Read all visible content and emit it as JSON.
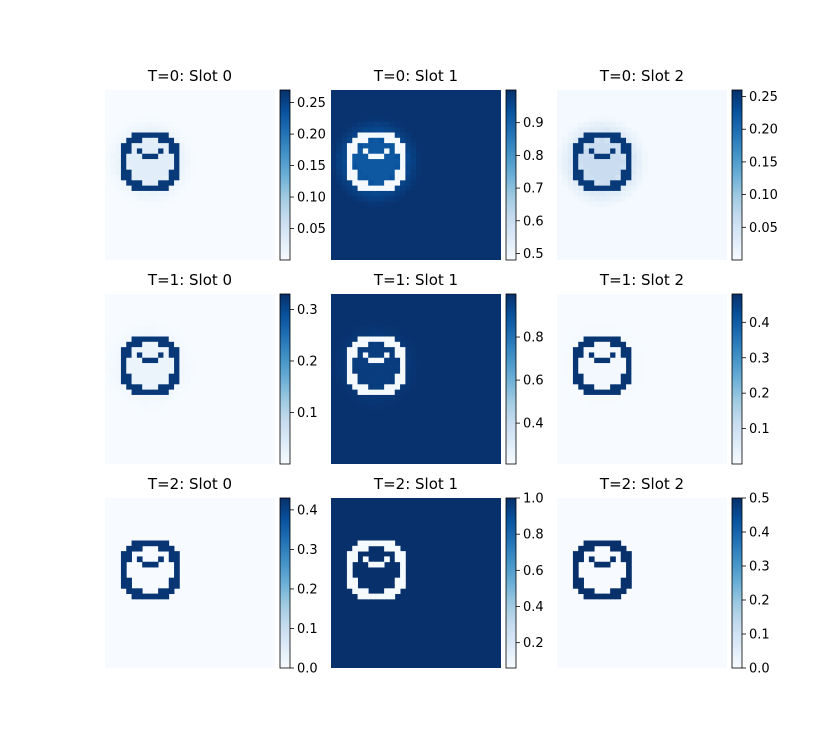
{
  "chart_data": {
    "type": "heatmap",
    "colormap": "Blues",
    "grid": false,
    "colorbar": "right of each panel",
    "ring_shape": "circle outline with inner crescent",
    "panels": [
      {
        "title": "T=0: Slot 0",
        "row": 0,
        "col": 0,
        "background": 0.0,
        "halo": 0.03,
        "ring": 0.26,
        "vmin": 0.0,
        "vmax": 0.27,
        "ticks": [
          0.05,
          0.1,
          0.15,
          0.2,
          0.25
        ],
        "tick_labels": [
          "0.05",
          "0.10",
          "0.15",
          "0.20",
          "0.25"
        ]
      },
      {
        "title": "T=0: Slot 1",
        "row": 0,
        "col": 1,
        "background": 0.995,
        "halo": 0.92,
        "ring": 0.49,
        "vmin": 0.48,
        "vmax": 1.0,
        "ticks": [
          0.5,
          0.6,
          0.7,
          0.8,
          0.9
        ],
        "tick_labels": [
          "0.5",
          "0.6",
          "0.7",
          "0.8",
          "0.9"
        ]
      },
      {
        "title": "T=0: Slot 2",
        "row": 0,
        "col": 2,
        "background": 0.005,
        "halo": 0.06,
        "ring": 0.25,
        "vmin": 0.0,
        "vmax": 0.26,
        "ticks": [
          0.05,
          0.1,
          0.15,
          0.2,
          0.25
        ],
        "tick_labels": [
          "0.05",
          "0.10",
          "0.15",
          "0.20",
          "0.25"
        ]
      },
      {
        "title": "T=1: Slot 0",
        "row": 1,
        "col": 0,
        "background": 0.0,
        "halo": 0.02,
        "ring": 0.32,
        "vmin": 0.0,
        "vmax": 0.33,
        "ticks": [
          0.1,
          0.2,
          0.3
        ],
        "tick_labels": [
          "0.1",
          "0.2",
          "0.3"
        ]
      },
      {
        "title": "T=1: Slot 1",
        "row": 1,
        "col": 1,
        "background": 0.995,
        "halo": 0.96,
        "ring": 0.22,
        "vmin": 0.21,
        "vmax": 1.0,
        "ticks": [
          0.4,
          0.6,
          0.8
        ],
        "tick_labels": [
          "0.4",
          "0.6",
          "0.8"
        ]
      },
      {
        "title": "T=1: Slot 2",
        "row": 1,
        "col": 2,
        "background": 0.0,
        "halo": 0.01,
        "ring": 0.47,
        "vmin": 0.0,
        "vmax": 0.48,
        "ticks": [
          0.1,
          0.2,
          0.3,
          0.4
        ],
        "tick_labels": [
          "0.1",
          "0.2",
          "0.3",
          "0.4"
        ]
      },
      {
        "title": "T=2: Slot 0",
        "row": 2,
        "col": 0,
        "background": 0.0,
        "halo": 0.0,
        "ring": 0.42,
        "vmin": 0.0,
        "vmax": 0.43,
        "ticks": [
          0.0,
          0.1,
          0.2,
          0.3,
          0.4
        ],
        "tick_labels": [
          "0.0",
          "0.1",
          "0.2",
          "0.3",
          "0.4"
        ]
      },
      {
        "title": "T=2: Slot 1",
        "row": 2,
        "col": 1,
        "background": 1.0,
        "halo": 1.0,
        "ring": 0.07,
        "vmin": 0.06,
        "vmax": 1.0,
        "ticks": [
          0.2,
          0.4,
          0.6,
          0.8,
          1.0
        ],
        "tick_labels": [
          "0.2",
          "0.4",
          "0.6",
          "0.8",
          "1.0"
        ]
      },
      {
        "title": "T=2: Slot 2",
        "row": 2,
        "col": 2,
        "background": 0.0,
        "halo": 0.0,
        "ring": 0.5,
        "vmin": 0.0,
        "vmax": 0.5,
        "ticks": [
          0.0,
          0.1,
          0.2,
          0.3,
          0.4,
          0.5
        ],
        "tick_labels": [
          "0.0",
          "0.1",
          "0.2",
          "0.3",
          "0.4",
          "0.5"
        ]
      }
    ]
  }
}
